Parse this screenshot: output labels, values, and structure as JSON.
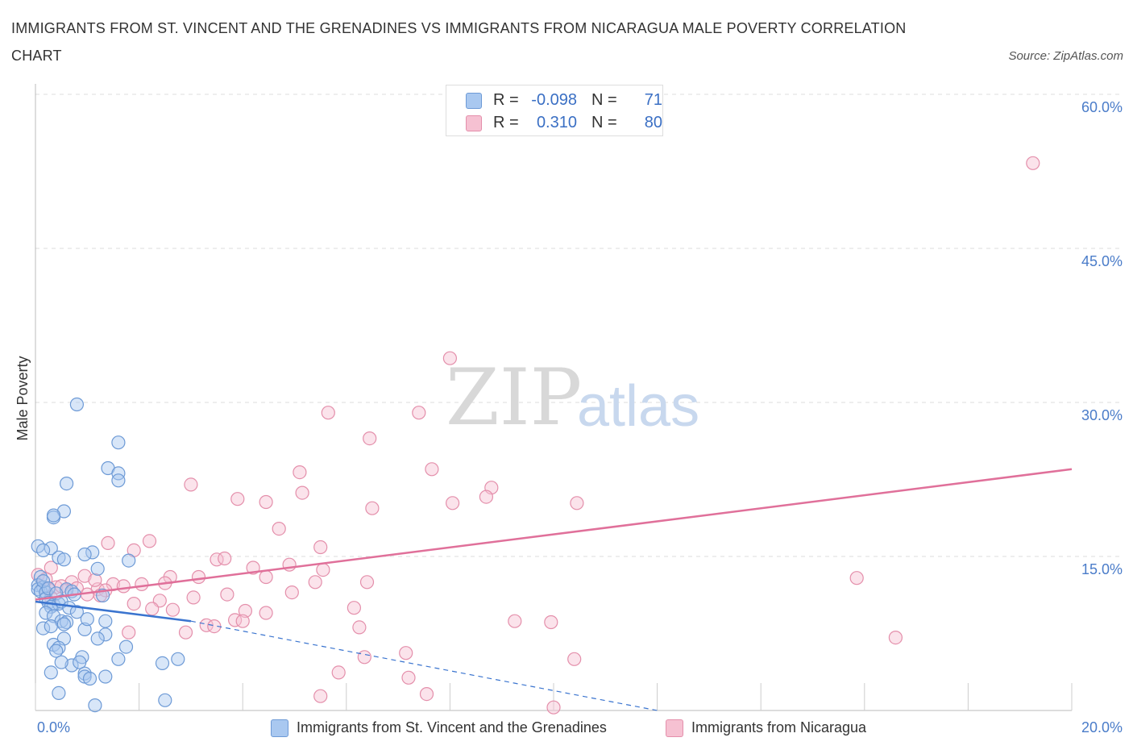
{
  "title": "IMMIGRANTS FROM ST. VINCENT AND THE GRENADINES VS IMMIGRANTS FROM NICARAGUA MALE POVERTY CORRELATION CHART",
  "source": "Source: ZipAtlas.com",
  "watermark": {
    "zip": "ZIP",
    "atlas": "atlas"
  },
  "stats": [
    {
      "r_label": "R =",
      "r_value": "-0.098",
      "n_label": "N =",
      "n_value": "71",
      "color": "#a9c8f0",
      "border": "#6d9ad6"
    },
    {
      "r_label": "R =",
      "r_value": "0.310",
      "n_label": "N =",
      "n_value": "80",
      "color": "#f6c1d2",
      "border": "#e48fab"
    }
  ],
  "legend": [
    {
      "label": "Immigrants from St. Vincent and the Grenadines",
      "color": "#a9c8f0",
      "border": "#6d9ad6"
    },
    {
      "label": "Immigrants from Nicaragua",
      "color": "#f6c1d2",
      "border": "#e48fab"
    }
  ],
  "colors": {
    "blue_line": "#3a74cf",
    "pink_line": "#e0709a",
    "grid": "#dcdcdc",
    "axis_text": "#4a7cc9"
  },
  "chart_data": {
    "type": "scatter",
    "ylabel": "Male Poverty",
    "xlabel": "",
    "xlim": [
      0,
      20
    ],
    "ylim": [
      0,
      60
    ],
    "x_tick_labels": [
      {
        "value": 0,
        "label": "0.0%"
      },
      {
        "value": 20,
        "label": "20.0%"
      }
    ],
    "y_tick_labels": [
      {
        "value": 15,
        "label": "15.0%"
      },
      {
        "value": 30,
        "label": "30.0%"
      },
      {
        "value": 45,
        "label": "45.0%"
      },
      {
        "value": 60,
        "label": "60.0%"
      }
    ],
    "x_ticks": [
      0,
      2,
      4,
      6,
      8,
      10,
      12,
      14,
      16,
      18,
      20
    ],
    "y_gridlines": [
      15,
      30,
      45,
      60
    ],
    "grid": true,
    "legend_position": "bottom",
    "series": [
      {
        "name": "Immigrants from St. Vincent and the Grenadines",
        "R": -0.098,
        "N": 71,
        "trend_solid": [
          [
            0,
            10.6
          ],
          [
            3.0,
            8.7
          ]
        ],
        "trend_dashed": [
          [
            3.0,
            8.7
          ],
          [
            12.0,
            0.0
          ]
        ],
        "points": [
          [
            0.8,
            29.8
          ],
          [
            1.6,
            26.1
          ],
          [
            1.4,
            23.6
          ],
          [
            1.6,
            23.1
          ],
          [
            0.6,
            22.1
          ],
          [
            1.6,
            22.4
          ],
          [
            0.55,
            19.4
          ],
          [
            0.35,
            18.8
          ],
          [
            0.35,
            19.0
          ],
          [
            0.05,
            16.0
          ],
          [
            0.3,
            15.8
          ],
          [
            0.15,
            15.6
          ],
          [
            1.1,
            15.4
          ],
          [
            0.95,
            15.2
          ],
          [
            0.45,
            14.9
          ],
          [
            0.55,
            14.7
          ],
          [
            1.8,
            14.6
          ],
          [
            1.2,
            13.8
          ],
          [
            0.1,
            13.0
          ],
          [
            0.05,
            12.2
          ],
          [
            0.15,
            12.0
          ],
          [
            0.05,
            11.8
          ],
          [
            0.1,
            11.6
          ],
          [
            0.2,
            11.5
          ],
          [
            0.6,
            11.8
          ],
          [
            0.7,
            11.6
          ],
          [
            0.75,
            11.3
          ],
          [
            1.3,
            11.2
          ],
          [
            0.2,
            10.9
          ],
          [
            0.25,
            10.5
          ],
          [
            0.35,
            10.3
          ],
          [
            0.45,
            10.4
          ],
          [
            0.3,
            10.1
          ],
          [
            0.2,
            9.5
          ],
          [
            0.35,
            9.2
          ],
          [
            0.5,
            8.7
          ],
          [
            0.6,
            8.6
          ],
          [
            0.55,
            8.4
          ],
          [
            0.15,
            8.0
          ],
          [
            0.3,
            8.2
          ],
          [
            0.95,
            7.9
          ],
          [
            1.35,
            8.7
          ],
          [
            1.35,
            7.4
          ],
          [
            1.2,
            7.0
          ],
          [
            0.55,
            7.0
          ],
          [
            0.35,
            6.4
          ],
          [
            0.45,
            6.1
          ],
          [
            0.4,
            5.8
          ],
          [
            1.75,
            6.2
          ],
          [
            0.9,
            5.2
          ],
          [
            0.7,
            4.4
          ],
          [
            0.5,
            4.7
          ],
          [
            0.85,
            4.7
          ],
          [
            1.6,
            5.0
          ],
          [
            2.45,
            4.6
          ],
          [
            2.75,
            5.0
          ],
          [
            0.3,
            3.7
          ],
          [
            0.95,
            3.6
          ],
          [
            0.95,
            3.3
          ],
          [
            1.05,
            3.1
          ],
          [
            1.35,
            3.3
          ],
          [
            0.45,
            1.7
          ],
          [
            2.5,
            1.0
          ],
          [
            1.15,
            0.5
          ],
          [
            0.15,
            12.6
          ],
          [
            0.25,
            11.9
          ],
          [
            0.4,
            11.4
          ],
          [
            0.5,
            10.6
          ],
          [
            0.65,
            10.0
          ],
          [
            0.8,
            9.6
          ],
          [
            1.0,
            8.9
          ]
        ]
      },
      {
        "name": "Immigrants from Nicaragua",
        "R": 0.31,
        "N": 80,
        "trend_solid": [
          [
            0,
            10.8
          ],
          [
            20,
            23.5
          ]
        ],
        "points": [
          [
            19.25,
            53.3
          ],
          [
            8.0,
            34.3
          ],
          [
            5.65,
            29.0
          ],
          [
            7.4,
            29.0
          ],
          [
            6.45,
            26.5
          ],
          [
            7.65,
            23.5
          ],
          [
            5.1,
            23.2
          ],
          [
            3.0,
            22.0
          ],
          [
            8.8,
            21.7
          ],
          [
            5.15,
            21.2
          ],
          [
            8.7,
            20.8
          ],
          [
            3.9,
            20.6
          ],
          [
            4.45,
            20.3
          ],
          [
            10.45,
            20.2
          ],
          [
            8.05,
            20.2
          ],
          [
            6.5,
            19.7
          ],
          [
            4.7,
            17.7
          ],
          [
            1.4,
            16.3
          ],
          [
            2.2,
            16.5
          ],
          [
            5.5,
            15.9
          ],
          [
            1.9,
            15.6
          ],
          [
            3.5,
            14.7
          ],
          [
            3.65,
            14.8
          ],
          [
            4.9,
            14.2
          ],
          [
            4.2,
            13.9
          ],
          [
            5.55,
            13.7
          ],
          [
            0.3,
            13.9
          ],
          [
            0.05,
            13.2
          ],
          [
            0.2,
            12.8
          ],
          [
            0.95,
            13.1
          ],
          [
            2.6,
            13.0
          ],
          [
            3.15,
            13.0
          ],
          [
            4.45,
            13.0
          ],
          [
            15.85,
            12.9
          ],
          [
            5.4,
            12.5
          ],
          [
            6.4,
            12.5
          ],
          [
            1.5,
            12.3
          ],
          [
            2.05,
            12.3
          ],
          [
            0.7,
            12.5
          ],
          [
            0.4,
            12.0
          ],
          [
            0.25,
            11.8
          ],
          [
            0.6,
            11.7
          ],
          [
            0.8,
            11.9
          ],
          [
            1.2,
            11.8
          ],
          [
            1.35,
            11.7
          ],
          [
            1.7,
            12.1
          ],
          [
            3.7,
            11.3
          ],
          [
            4.95,
            11.5
          ],
          [
            3.05,
            11.0
          ],
          [
            1.25,
            11.2
          ],
          [
            2.4,
            10.7
          ],
          [
            0.3,
            11.0
          ],
          [
            1.0,
            11.3
          ],
          [
            1.9,
            10.4
          ],
          [
            2.25,
            9.9
          ],
          [
            2.65,
            9.8
          ],
          [
            4.05,
            9.7
          ],
          [
            6.15,
            10.0
          ],
          [
            4.45,
            9.5
          ],
          [
            3.85,
            8.8
          ],
          [
            4.0,
            8.7
          ],
          [
            9.25,
            8.7
          ],
          [
            9.95,
            8.6
          ],
          [
            3.3,
            8.3
          ],
          [
            3.45,
            8.2
          ],
          [
            6.25,
            8.1
          ],
          [
            2.9,
            7.6
          ],
          [
            1.8,
            7.6
          ],
          [
            16.6,
            7.1
          ],
          [
            7.15,
            5.6
          ],
          [
            6.35,
            5.2
          ],
          [
            10.4,
            5.0
          ],
          [
            5.85,
            3.7
          ],
          [
            7.2,
            3.2
          ],
          [
            5.5,
            1.4
          ],
          [
            7.55,
            1.6
          ],
          [
            10.0,
            0.3
          ],
          [
            0.5,
            12.1
          ],
          [
            1.15,
            12.7
          ],
          [
            2.5,
            12.4
          ]
        ]
      }
    ]
  }
}
